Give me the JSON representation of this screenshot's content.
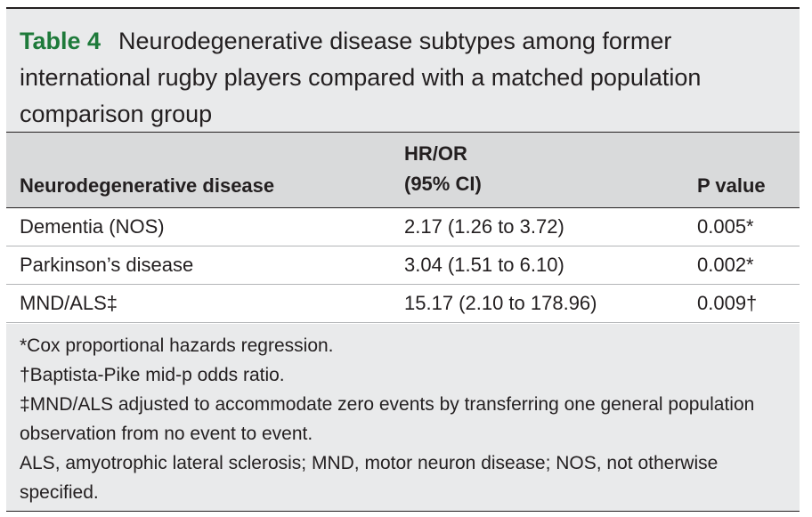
{
  "title": {
    "label": "Table 4",
    "text": "Neurodegenerative disease subtypes among former international rugby players compared with a matched population comparison group"
  },
  "columns": {
    "disease": "Neurodegenerative disease",
    "hr_line1": "HR/OR",
    "hr_line2": "(95% CI)",
    "p_value": "P value"
  },
  "rows": [
    {
      "disease": "Dementia (NOS)",
      "hr": "2.17 (1.26 to 3.72)",
      "p": "0.005*"
    },
    {
      "disease": "Parkinson’s disease",
      "hr": "3.04 (1.51 to 6.10)",
      "p": "0.002*"
    },
    {
      "disease": "MND/ALS‡",
      "hr": "15.17 (2.10 to 178.96)",
      "p": "0.009†"
    }
  ],
  "footnotes": [
    "*Cox proportional hazards regression.",
    "†Baptista-Pike mid-p odds ratio.",
    "‡MND/ALS adjusted to accommodate zero events by transferring one general population observation from no event to event.",
    "ALS, amyotrophic lateral sclerosis; MND, motor neuron disease; NOS, not otherwise specified."
  ],
  "colors": {
    "title_label": "#1e7a3a",
    "title_bg": "#e9eaeb",
    "header_bg": "#d9dadb"
  }
}
